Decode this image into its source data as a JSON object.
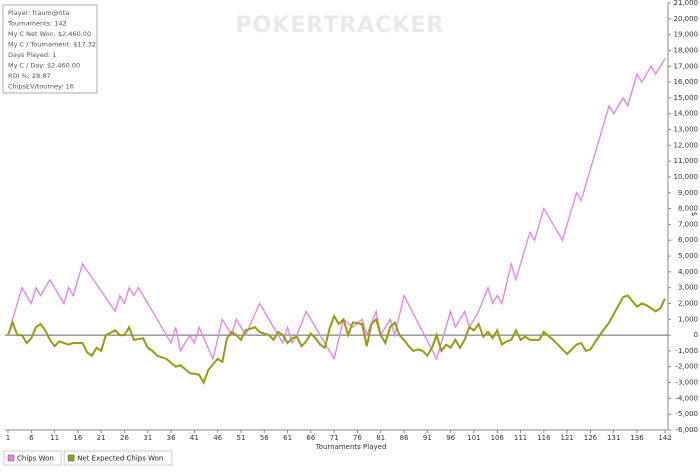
{
  "chart_data": {
    "type": "line",
    "watermark": "POKERTRACKER",
    "stats": [
      "Player: fraum@rita",
      "Tournaments: 142",
      "My C Net Won: $2,460.00",
      "My C / Tournament: $17.32",
      "Days Played: 1",
      "My C / Day: $2,460.00",
      "ROI %: 28.87",
      "ChipsEV/tourney: 16"
    ],
    "x_label": "Tournaments Played",
    "y_label": "$",
    "xlim": [
      1,
      142
    ],
    "xticks": [
      1,
      6,
      11,
      16,
      21,
      26,
      31,
      36,
      41,
      46,
      51,
      56,
      61,
      66,
      71,
      76,
      81,
      86,
      91,
      96,
      101,
      106,
      111,
      116,
      121,
      126,
      131,
      136,
      142
    ],
    "ylim": [
      -6000,
      21000
    ],
    "yticks": [
      {
        "value": -6000,
        "label": "-6,000"
      },
      {
        "value": -5000,
        "label": "-5,000"
      },
      {
        "value": -4000,
        "label": "-4,000"
      },
      {
        "value": -3000,
        "label": "-3,000"
      },
      {
        "value": -2000,
        "label": "-2,000"
      },
      {
        "value": -1000,
        "label": "-1,000"
      },
      0,
      {
        "value": 1000,
        "label": "1,000"
      },
      {
        "value": 2000,
        "label": "2,000"
      },
      {
        "value": 3000,
        "label": "3,000"
      },
      {
        "value": 4000,
        "label": "4,000"
      },
      {
        "value": 5000,
        "label": "5,000"
      },
      {
        "value": 6000,
        "label": "6,000"
      },
      {
        "value": 7000,
        "label": "7,000"
      },
      {
        "value": 8000,
        "label": "8,000"
      },
      {
        "value": 9000,
        "label": "9,000"
      },
      {
        "value": 10000,
        "label": "10,000"
      },
      {
        "value": 11000,
        "label": "11,000"
      },
      {
        "value": 12000,
        "label": "12,000"
      },
      {
        "value": 13000,
        "label": "13,000"
      },
      {
        "value": 14000,
        "label": "14,000"
      },
      {
        "value": 15000,
        "label": "15,000"
      },
      {
        "value": 16000,
        "label": "16,000"
      },
      {
        "value": 17000,
        "label": "17,000"
      },
      {
        "value": 18000,
        "label": "18,000"
      },
      {
        "value": 19000,
        "label": "19,000"
      },
      {
        "value": 20000,
        "label": "20,000"
      },
      {
        "value": 21000,
        "label": "21,000"
      }
    ],
    "series": [
      {
        "name": "Chips Won",
        "color": "#e87ee8",
        "x": [
          1,
          4,
          6,
          7,
          8,
          10,
          13,
          14,
          15,
          17,
          24,
          25,
          26,
          27,
          28,
          29,
          33,
          36,
          37,
          38,
          40,
          41,
          42,
          45,
          47,
          49,
          50,
          52,
          55,
          60,
          61,
          62,
          63,
          65,
          71,
          73,
          75,
          77,
          78,
          80,
          81,
          83,
          84,
          86,
          93,
          96,
          97,
          99,
          100,
          102,
          104,
          105,
          106,
          107,
          109,
          110,
          113,
          114,
          116,
          120,
          123,
          124,
          130,
          131,
          133,
          134,
          136,
          137,
          139,
          140,
          141,
          142
        ],
        "values": [
          0,
          3000,
          2000,
          3000,
          2500,
          3500,
          2000,
          3000,
          2500,
          4500,
          1500,
          2500,
          2000,
          3000,
          2500,
          3000,
          1000,
          -500,
          500,
          -1000,
          0,
          -500,
          500,
          -1500,
          1000,
          0,
          1000,
          0,
          2000,
          -500,
          500,
          -500,
          0,
          1500,
          -1500,
          1000,
          500,
          1000,
          0,
          1500,
          0,
          1000,
          0,
          2500,
          -1500,
          1500,
          500,
          1500,
          500,
          1500,
          3000,
          2000,
          2500,
          2000,
          4500,
          3500,
          6500,
          6000,
          8000,
          6000,
          9000,
          8500,
          14500,
          14000,
          15000,
          14500,
          16500,
          16000,
          17000,
          16500,
          17000,
          17500
        ]
      },
      {
        "name": "Net Expected Chips Won",
        "color": "#9a9a10",
        "x": [
          1,
          2,
          3,
          4,
          5,
          6,
          7,
          8,
          9,
          10,
          11,
          12,
          14,
          15,
          17,
          18,
          19,
          20,
          21,
          22,
          24,
          25,
          26,
          27,
          28,
          30,
          31,
          32,
          33,
          35,
          37,
          38,
          40,
          42,
          43,
          44,
          46,
          47,
          48,
          49,
          50,
          51,
          52,
          54,
          55,
          57,
          58,
          59,
          60,
          61,
          62,
          63,
          64,
          65,
          66,
          67,
          68,
          69,
          70,
          71,
          72,
          73,
          74,
          75,
          77,
          78,
          79,
          80,
          81,
          82,
          83,
          84,
          85,
          86,
          87,
          88,
          89,
          90,
          91,
          92,
          93,
          94,
          95,
          96,
          97,
          98,
          99,
          100,
          101,
          102,
          103,
          104,
          105,
          106,
          107,
          108,
          109,
          110,
          111,
          112,
          113,
          115,
          116,
          118,
          121,
          123,
          124,
          125,
          126,
          128,
          130,
          133,
          134,
          136,
          137,
          138,
          140,
          141,
          142
        ],
        "values": [
          0,
          800,
          0,
          0,
          -500,
          -200,
          500,
          700,
          300,
          -300,
          -700,
          -400,
          -600,
          -500,
          -500,
          -1100,
          -1300,
          -800,
          -1000,
          0,
          300,
          0,
          0,
          500,
          -300,
          -200,
          -800,
          -1000,
          -1300,
          -1500,
          -2000,
          -1900,
          -2400,
          -2500,
          -3000,
          -2200,
          -1500,
          -1700,
          -200,
          200,
          0,
          -300,
          300,
          500,
          200,
          0,
          -300,
          200,
          0,
          -500,
          -200,
          -100,
          -700,
          -400,
          100,
          -200,
          -600,
          -800,
          400,
          1200,
          700,
          1000,
          0,
          800,
          700,
          -700,
          700,
          1000,
          0,
          -500,
          500,
          800,
          0,
          -300,
          -700,
          -1000,
          -900,
          -1000,
          -1300,
          -800,
          0,
          -1000,
          -600,
          -800,
          -300,
          -800,
          -300,
          500,
          300,
          700,
          -100,
          200,
          -200,
          300,
          -600,
          -400,
          -300,
          300,
          -300,
          -100,
          -300,
          -300,
          200,
          -300,
          -1200,
          -600,
          -500,
          -1000,
          -900,
          0,
          800,
          2400,
          2500,
          1800,
          2000,
          1900,
          1500,
          1700,
          2300
        ]
      }
    ],
    "zero_line": true
  }
}
